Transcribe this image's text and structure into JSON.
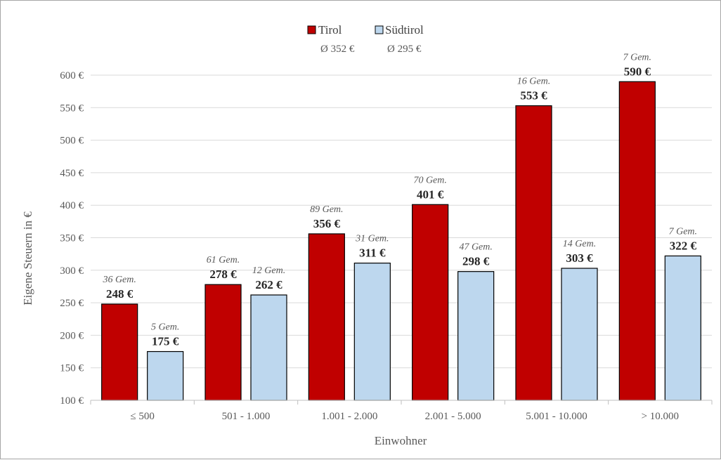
{
  "chart_data": {
    "type": "bar",
    "xlabel": "Einwohner",
    "ylabel": "Eigene Steuern in €",
    "ylim": [
      100,
      600
    ],
    "yticks": [
      100,
      150,
      200,
      250,
      300,
      350,
      400,
      450,
      500,
      550,
      600
    ],
    "ytick_labels": [
      "100 €",
      "150 €",
      "200 €",
      "250 €",
      "300 €",
      "350 €",
      "400 €",
      "450 €",
      "500 €",
      "550 €",
      "600 €"
    ],
    "grid": true,
    "legend_position": "top-center",
    "categories": [
      "≤ 500",
      "501 - 1.000",
      "1.001 - 2.000",
      "2.001 - 5.000",
      "5.001 - 10.000",
      "> 10.000"
    ],
    "series": [
      {
        "name": "Tirol",
        "average_label": "Ø 352 €",
        "color": "#c00000",
        "values": [
          248,
          278,
          356,
          401,
          553,
          590
        ],
        "value_labels": [
          "248 €",
          "278 €",
          "356 €",
          "401 €",
          "553 €",
          "590 €"
        ],
        "count_labels": [
          "36 Gem.",
          "61 Gem.",
          "89 Gem.",
          "70 Gem.",
          "16 Gem.",
          "7 Gem."
        ]
      },
      {
        "name": "Südtirol",
        "average_label": "Ø 295 €",
        "color": "#bdd7ee",
        "values": [
          175,
          262,
          311,
          298,
          303,
          322
        ],
        "value_labels": [
          "175 €",
          "262 €",
          "311 €",
          "298 €",
          "303 €",
          "322 €"
        ],
        "count_labels": [
          "5 Gem.",
          "12 Gem.",
          "31 Gem.",
          "47 Gem.",
          "14 Gem.",
          "7 Gem."
        ]
      }
    ]
  }
}
